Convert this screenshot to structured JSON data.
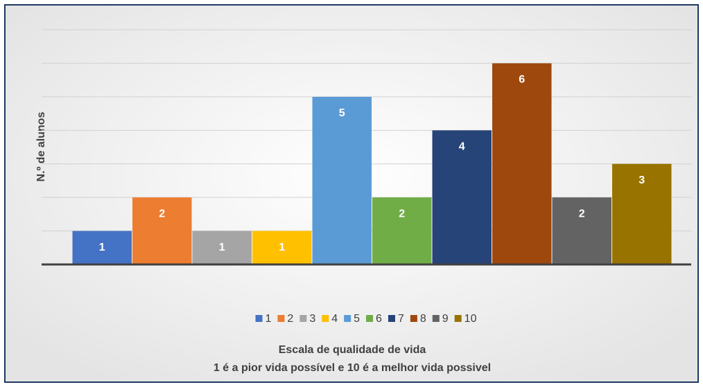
{
  "chart_data": {
    "type": "bar",
    "ylabel": "N.º de alunos",
    "xlabel": [
      "Escala de qualidade de vida",
      "1 é a pior vida possível e 10 é a melhor vida possivel"
    ],
    "series": [
      {
        "name": "1",
        "color": "#4472c4",
        "values": [
          1
        ]
      },
      {
        "name": "2",
        "color": "#ed7d31",
        "values": [
          2
        ]
      },
      {
        "name": "3",
        "color": "#a5a5a5",
        "values": [
          1
        ]
      },
      {
        "name": "4",
        "color": "#ffc000",
        "values": [
          1
        ]
      },
      {
        "name": "5",
        "color": "#5b9bd5",
        "values": [
          5
        ]
      },
      {
        "name": "6",
        "color": "#70ad47",
        "values": [
          2
        ]
      },
      {
        "name": "7",
        "color": "#264478",
        "values": [
          4
        ]
      },
      {
        "name": "8",
        "color": "#9e480e",
        "values": [
          6
        ]
      },
      {
        "name": "9",
        "color": "#636363",
        "values": [
          2
        ]
      },
      {
        "name": "10",
        "color": "#997300",
        "values": [
          3
        ]
      }
    ],
    "ylim": [
      0,
      7
    ],
    "yticks": [
      0,
      1,
      2,
      3,
      4,
      5,
      6,
      7
    ],
    "grid": true,
    "legend": "bottom"
  }
}
